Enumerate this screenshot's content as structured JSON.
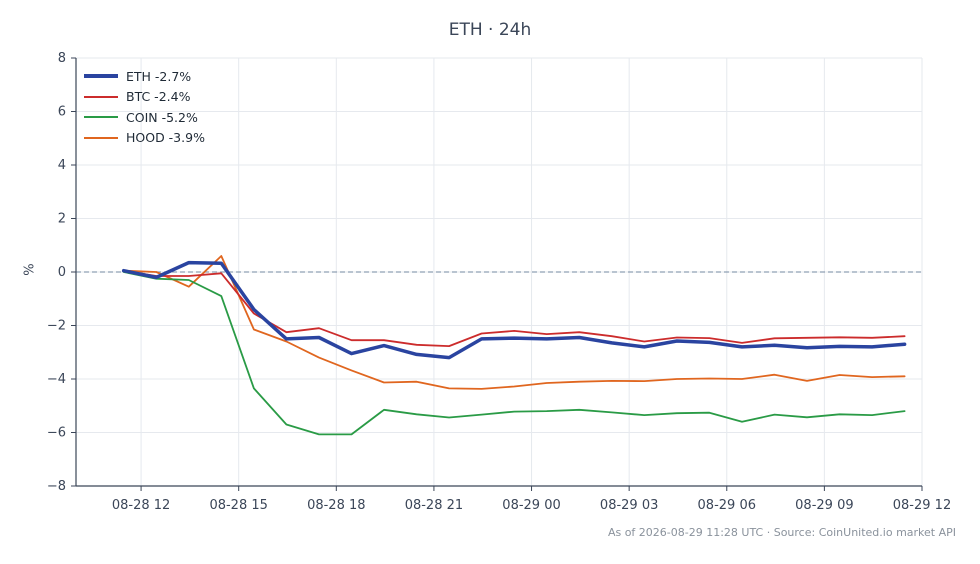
{
  "chart_data": {
    "type": "line",
    "title": "ETH · 24h",
    "ylabel": "%",
    "xlabel": "",
    "ylim": [
      -8,
      8
    ],
    "yticks": [
      -8,
      -6,
      -4,
      -2,
      0,
      2,
      4,
      6,
      8
    ],
    "xlim": [
      "08-28 10:00",
      "08-29 12:00"
    ],
    "xticks": [
      "08-28 12",
      "08-28 15",
      "08-28 18",
      "08-28 21",
      "08-29 00",
      "08-29 03",
      "08-29 06",
      "08-29 09",
      "08-29 12"
    ],
    "x": [
      "08-28 11:28",
      "08-28 12:28",
      "08-28 13:28",
      "08-28 14:28",
      "08-28 15:28",
      "08-28 16:28",
      "08-28 17:28",
      "08-28 18:28",
      "08-28 19:28",
      "08-28 20:28",
      "08-28 21:28",
      "08-28 22:28",
      "08-28 23:28",
      "08-29 00:28",
      "08-29 01:28",
      "08-29 02:28",
      "08-29 03:28",
      "08-29 04:28",
      "08-29 05:28",
      "08-29 06:28",
      "08-29 07:28",
      "08-29 08:28",
      "08-29 09:28",
      "08-29 10:28",
      "08-29 11:28"
    ],
    "grid": true,
    "reference_line": 0,
    "legend_position": "top-left",
    "series": [
      {
        "name": "ETH -2.7%",
        "color": "#2a44a0",
        "width": 3.5,
        "values": [
          0.05,
          -0.2,
          0.35,
          0.33,
          -1.4,
          -2.5,
          -2.45,
          -3.05,
          -2.75,
          -3.08,
          -3.2,
          -2.5,
          -2.47,
          -2.5,
          -2.45,
          -2.65,
          -2.8,
          -2.58,
          -2.63,
          -2.8,
          -2.74,
          -2.83,
          -2.78,
          -2.8,
          -2.7
        ]
      },
      {
        "name": "BTC -2.4%",
        "color": "#cc2c2c",
        "width": 1.8,
        "values": [
          0.05,
          -0.15,
          -0.15,
          -0.05,
          -1.55,
          -2.25,
          -2.1,
          -2.55,
          -2.55,
          -2.72,
          -2.77,
          -2.3,
          -2.2,
          -2.32,
          -2.25,
          -2.4,
          -2.6,
          -2.45,
          -2.47,
          -2.65,
          -2.48,
          -2.46,
          -2.44,
          -2.46,
          -2.4
        ]
      },
      {
        "name": "COIN -5.2%",
        "color": "#2a9b46",
        "width": 1.8,
        "values": [
          0.0,
          -0.25,
          -0.3,
          -0.9,
          -4.35,
          -5.7,
          -6.07,
          -6.07,
          -5.15,
          -5.32,
          -5.44,
          -5.33,
          -5.22,
          -5.2,
          -5.15,
          -5.25,
          -5.35,
          -5.28,
          -5.26,
          -5.6,
          -5.33,
          -5.43,
          -5.32,
          -5.35,
          -5.2
        ]
      },
      {
        "name": "HOOD -3.9%",
        "color": "#e0661f",
        "width": 1.8,
        "values": [
          0.05,
          0.0,
          -0.55,
          0.6,
          -2.15,
          -2.6,
          -3.2,
          -3.68,
          -4.13,
          -4.1,
          -4.35,
          -4.37,
          -4.28,
          -4.15,
          -4.1,
          -4.07,
          -4.08,
          -4.0,
          -3.98,
          -4.0,
          -3.84,
          -4.07,
          -3.85,
          -3.93,
          -3.9
        ]
      }
    ]
  },
  "footer": "As of 2026-08-29 11:28 UTC · Source: CoinUnited.io market API",
  "colors": {
    "axis": "#3b4658",
    "grid": "#e6e9ee",
    "zero_line": "#8fa0b3",
    "background": "#ffffff"
  }
}
